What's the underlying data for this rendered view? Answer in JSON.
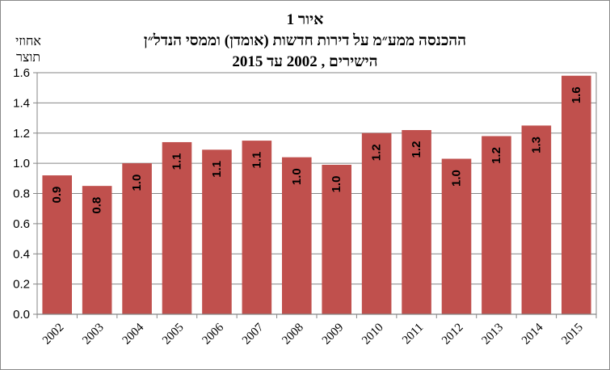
{
  "chart_data": {
    "type": "bar",
    "title_lines": [
      "איור 1",
      "ההכנסה ממע״מ על דירות חדשות (אומדן) וממסי הנדל״ן",
      "הישירים , 2002 עד 2015"
    ],
    "ylabel_lines": [
      "אחוזי",
      "תוצר"
    ],
    "categories": [
      "2002",
      "2003",
      "2004",
      "2005",
      "2006",
      "2007",
      "2008",
      "2009",
      "2010",
      "2011",
      "2012",
      "2013",
      "2014",
      "2015"
    ],
    "values": [
      0.92,
      0.85,
      1.0,
      1.14,
      1.09,
      1.15,
      1.04,
      0.99,
      1.2,
      1.22,
      1.03,
      1.18,
      1.25,
      1.58
    ],
    "data_labels": [
      "0.9",
      "0.8",
      "1.0",
      "1.1",
      "1.1",
      "1.1",
      "1.0",
      "1.0",
      "1.2",
      "1.2",
      "1.0",
      "1.2",
      "1.3",
      "1.6"
    ],
    "yticks": [
      "0.0",
      "0.2",
      "0.4",
      "0.6",
      "0.8",
      "1.0",
      "1.2",
      "1.4",
      "1.6"
    ],
    "ylim": [
      0,
      1.6
    ],
    "grid": true,
    "legend": "none",
    "bar_color": "#c0504d"
  }
}
